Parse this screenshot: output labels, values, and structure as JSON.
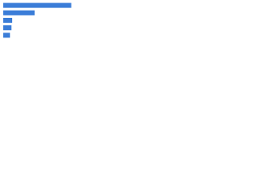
{
  "chart_data": {
    "type": "barh",
    "categories": [
      null,
      null,
      null,
      null,
      null
    ],
    "values": [
      91,
      42,
      12,
      11,
      9
    ],
    "color": "#3b7dd8",
    "xlim": [
      0,
      100
    ]
  }
}
